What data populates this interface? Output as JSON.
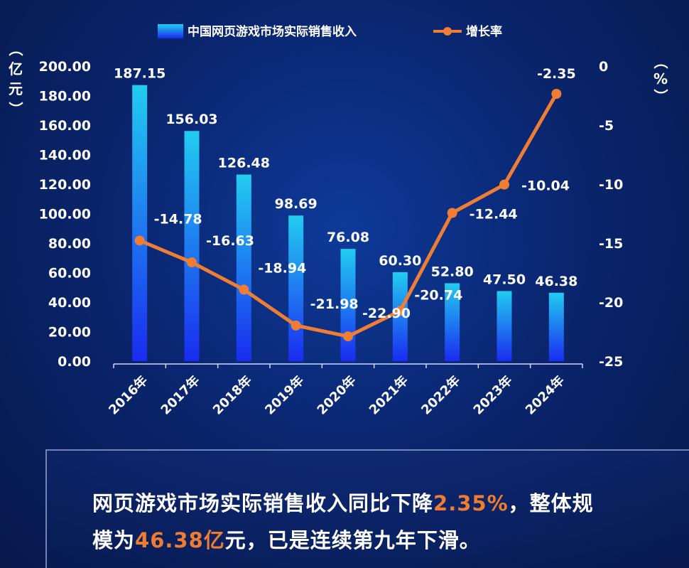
{
  "chart_data": {
    "type": "bar",
    "categories": [
      "2016年",
      "2017年",
      "2018年",
      "2019年",
      "2020年",
      "2021年",
      "2022年",
      "2023年",
      "2024年"
    ],
    "series": [
      {
        "name": "中国网页游戏市场实际销售收入",
        "type": "bar",
        "axis": "left",
        "values": [
          187.15,
          156.03,
          126.48,
          98.69,
          76.08,
          60.3,
          52.8,
          47.5,
          46.38
        ],
        "labels": [
          "187.15",
          "156.03",
          "126.48",
          "98.69",
          "76.08",
          "60.30",
          "52.80",
          "47.50",
          "46.38"
        ]
      },
      {
        "name": "增长率",
        "type": "line",
        "axis": "right",
        "values": [
          -14.78,
          -16.63,
          -18.94,
          -21.98,
          -22.9,
          -20.74,
          -12.44,
          -10.04,
          -2.35
        ],
        "labels": [
          "-14.78",
          "-16.63",
          "-18.94",
          "-21.98",
          "-22.90",
          "-20.74",
          "-12.44",
          "-10.04",
          "-2.35"
        ]
      }
    ],
    "ylim": [
      0,
      200
    ],
    "y2lim": [
      -25,
      0
    ],
    "yticks": [
      "200.00",
      "180.00",
      "160.00",
      "140.00",
      "120.00",
      "100.00",
      "80.00",
      "60.00",
      "40.00",
      "20.00",
      "0.00"
    ],
    "y2ticks": [
      "0",
      "-5",
      "-10",
      "-15",
      "-20",
      "-25"
    ],
    "ylabel": "（亿元）",
    "y2label": "（%）",
    "legend_position": "top-center",
    "colors": {
      "bar_top": "#22ccf0",
      "bar_bottom": "#1a2bf0",
      "line": "#ef7d33",
      "text": "#ffffff"
    }
  },
  "summary": {
    "part1": "网页游戏市场实际销售收入同比下降",
    "hl1": "2.35%",
    "part2": "，整体规模为",
    "hl2": "46.38亿",
    "part3": "元，已是连续第九年下滑。"
  }
}
